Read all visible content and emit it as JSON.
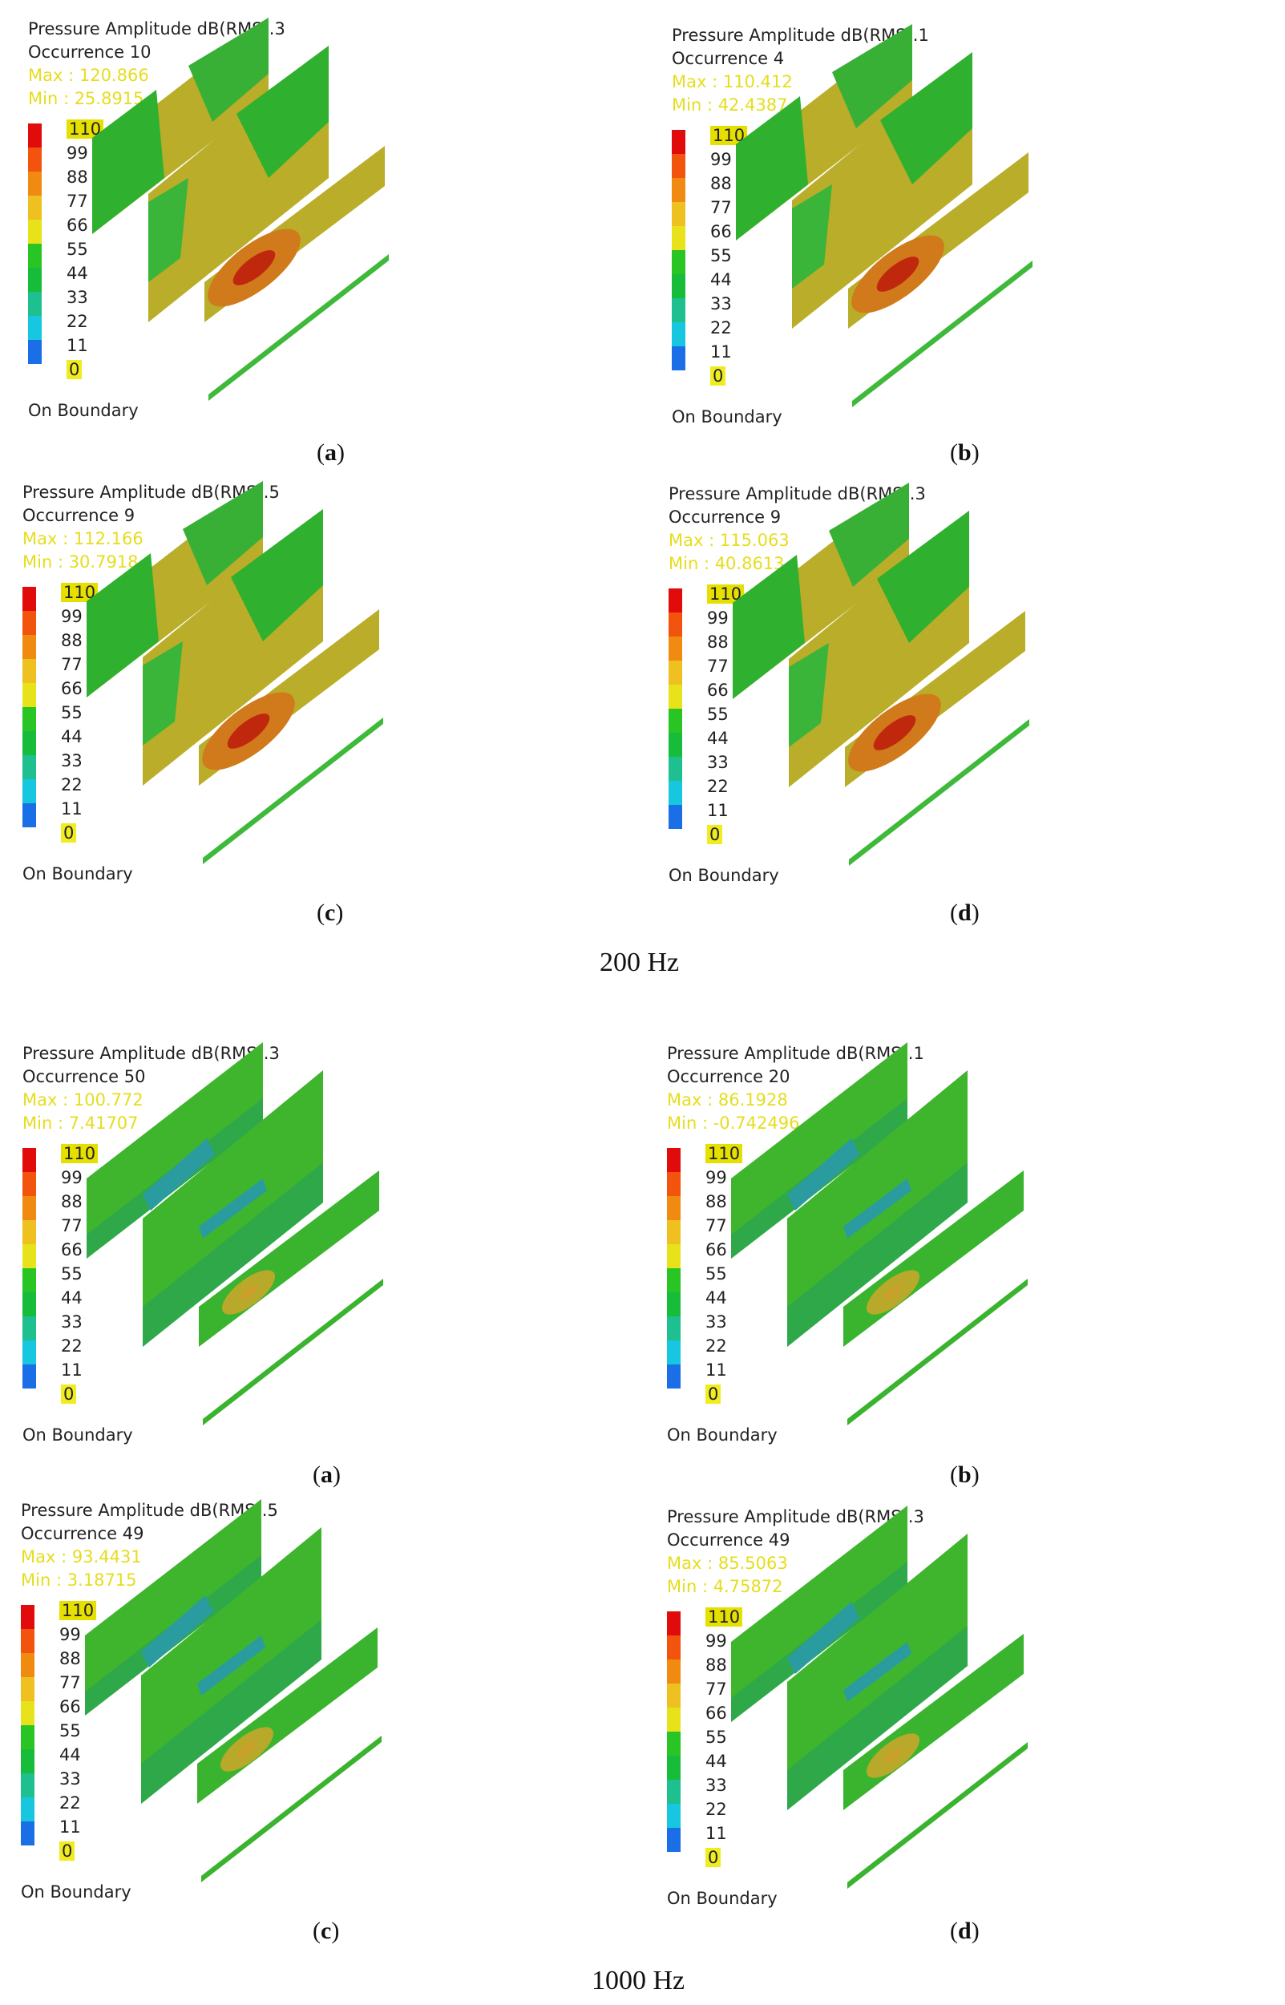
{
  "figure": {
    "colorbar": {
      "ticks": [
        "110",
        "99",
        "88",
        "77",
        "66",
        "55",
        "44",
        "33",
        "22",
        "11",
        "0"
      ],
      "colors": [
        "#e10b0b",
        "#f2540d",
        "#f08a10",
        "#eec020",
        "#e8e21a",
        "#28c524",
        "#17bd3a",
        "#1dc08e",
        "#17c7df",
        "#1a6fe6",
        "#1122c8"
      ],
      "boundary_label": "On Boundary"
    },
    "groups": [
      {
        "frequency_label": "200 Hz",
        "panels": [
          {
            "caption_letter": "a",
            "title": "Pressure Amplitude dB(RMS).3",
            "occurrence": "Occurrence 10",
            "max": "Max : 120.866",
            "min": "Min : 25.8915",
            "style": "low"
          },
          {
            "caption_letter": "b",
            "title": "Pressure Amplitude dB(RMS).1",
            "occurrence": "Occurrence 4",
            "max": "Max : 110.412",
            "min": "Min : 42.4387",
            "style": "low"
          },
          {
            "caption_letter": "c",
            "title": "Pressure Amplitude dB(RMS).5",
            "occurrence": "Occurrence 9",
            "max": "Max : 112.166",
            "min": "Min : 30.7918",
            "style": "low"
          },
          {
            "caption_letter": "d",
            "title": "Pressure Amplitude dB(RMS).3",
            "occurrence": "Occurrence 9",
            "max": "Max : 115.063",
            "min": "Min : 40.8613",
            "style": "low"
          }
        ]
      },
      {
        "frequency_label": "1000 Hz",
        "panels": [
          {
            "caption_letter": "a",
            "title": "Pressure Amplitude dB(RMS).3",
            "occurrence": "Occurrence 50",
            "max": "Max : 100.772",
            "min": "Min : 7.41707",
            "style": "high"
          },
          {
            "caption_letter": "b",
            "title": "Pressure Amplitude dB(RMS).1",
            "occurrence": "Occurrence 20",
            "max": "Max : 86.1928",
            "min": "Min : -0.742496",
            "style": "high"
          },
          {
            "caption_letter": "c",
            "title": "Pressure Amplitude dB(RMS).5",
            "occurrence": "Occurrence 49",
            "max": "Max : 93.4431",
            "min": "Min : 3.18715",
            "style": "high"
          },
          {
            "caption_letter": "d",
            "title": "Pressure Amplitude dB(RMS).3",
            "occurrence": "Occurrence 49",
            "max": "Max : 85.5063",
            "min": "Min : 4.75872",
            "style": "high"
          }
        ]
      }
    ]
  }
}
